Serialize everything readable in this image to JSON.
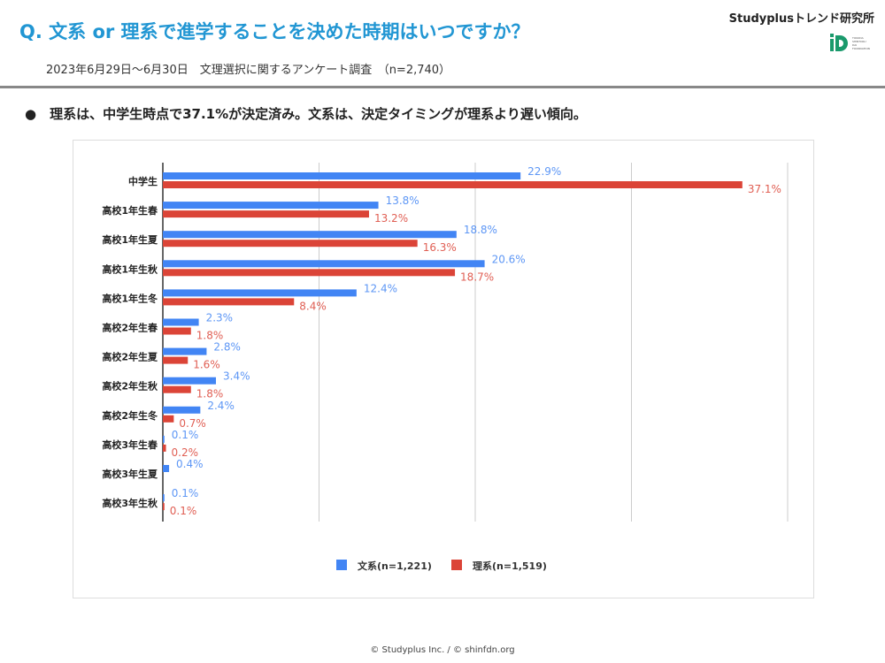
{
  "header": {
    "title": "Q. 文系 or 理系で進学することを決めた時期はいつですか？",
    "subtitle": "2023年6月29日〜6月30日　文理選択に関するアンケート調査　（n=2,740）",
    "brand": "Studyplusトレンド研究所",
    "logo_text": "TOKODA SHINTOKU DAI FOUNDATION"
  },
  "bullet": "●　理系は、中学生時点で37.1%が決定済み。文系は、決定タイミングが理系より遅い傾向。",
  "footer": "© Studyplus Inc.  /  © shinfdn.org",
  "chart_data": {
    "type": "bar",
    "orientation": "horizontal",
    "xlim": [
      0,
      40
    ],
    "grid": true,
    "legend_position": "bottom",
    "categories": [
      "中学生",
      "高校1年生春",
      "高校1年生夏",
      "高校1年生秋",
      "高校1年生冬",
      "高校2年生春",
      "高校2年生夏",
      "高校2年生秋",
      "高校2年生冬",
      "高校3年生春",
      "高校3年生夏",
      "高校3年生秋"
    ],
    "series": [
      {
        "name": "文系(n=1,221)",
        "color": "#4285f4",
        "values": [
          22.9,
          13.8,
          18.8,
          20.6,
          12.4,
          2.3,
          2.8,
          3.4,
          2.4,
          0.1,
          0.4,
          0.1
        ]
      },
      {
        "name": "理系(n=1,519)",
        "color": "#db4437",
        "values": [
          37.1,
          13.2,
          16.3,
          18.7,
          8.4,
          1.8,
          1.6,
          1.8,
          0.7,
          0.2,
          null,
          0.1
        ]
      }
    ]
  }
}
